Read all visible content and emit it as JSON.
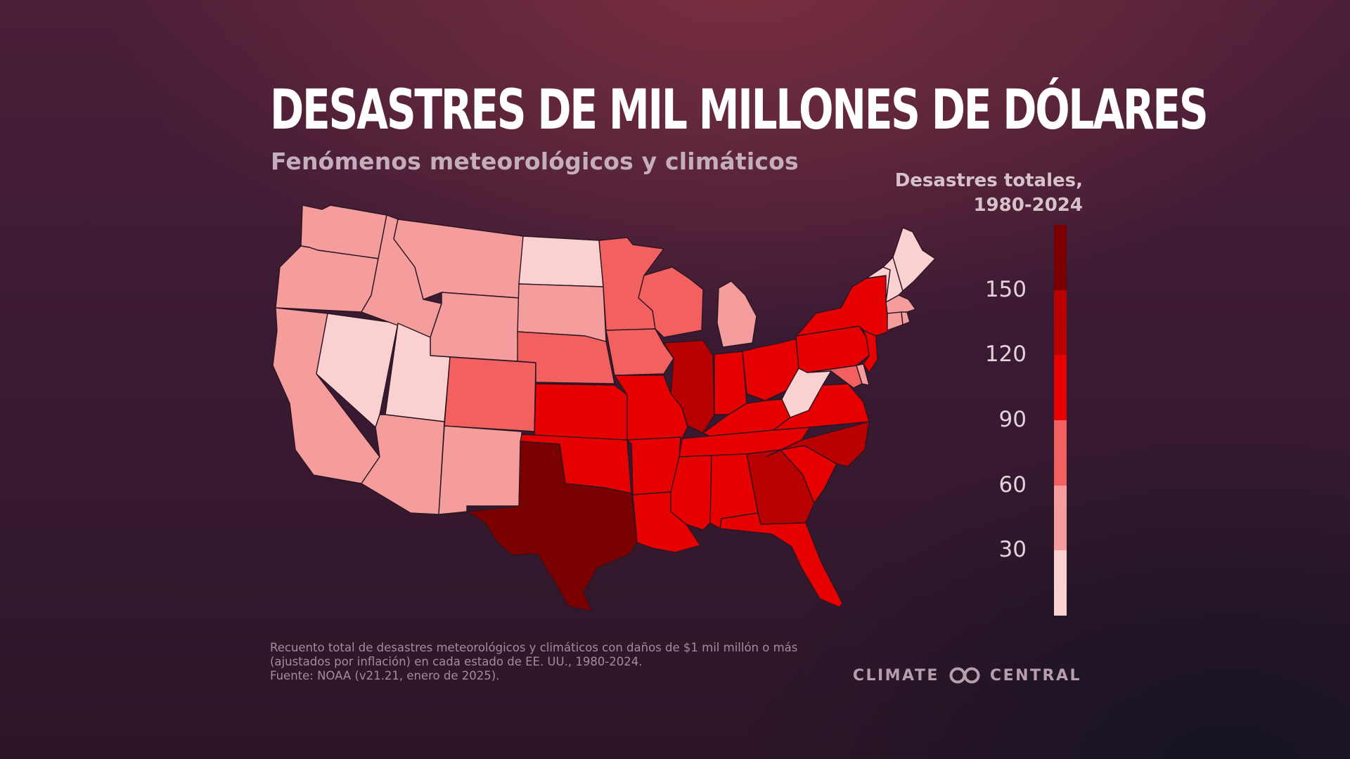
{
  "title": "DESASTRES DE MIL MILLONES DE DÓLARES",
  "subtitle": "Fenómenos meteorológicos y climáticos",
  "legend": {
    "title_line1": "Desastres totales,",
    "title_line2": "1980-2024",
    "ticks": [
      "150",
      "120",
      "90",
      "60",
      "30"
    ],
    "colors": [
      "#7a0000",
      "#b80000",
      "#e60000",
      "#f26060",
      "#f59c9c",
      "#fbd0d0"
    ]
  },
  "map": {
    "scale_bins": [
      {
        "range": "0-30",
        "color": "#fbd0d0"
      },
      {
        "range": "30-60",
        "color": "#f59c9c"
      },
      {
        "range": "60-90",
        "color": "#f26060"
      },
      {
        "range": "90-120",
        "color": "#e60000"
      },
      {
        "range": "120-150",
        "color": "#b80000"
      },
      {
        "range": "150+",
        "color": "#7a0000"
      }
    ],
    "states": [
      {
        "id": "WA",
        "bin": 1
      },
      {
        "id": "OR",
        "bin": 1
      },
      {
        "id": "CA",
        "bin": 1
      },
      {
        "id": "NV",
        "bin": 0
      },
      {
        "id": "ID",
        "bin": 1
      },
      {
        "id": "MT",
        "bin": 1
      },
      {
        "id": "WY",
        "bin": 1
      },
      {
        "id": "UT",
        "bin": 0
      },
      {
        "id": "AZ",
        "bin": 1
      },
      {
        "id": "CO",
        "bin": 2
      },
      {
        "id": "NM",
        "bin": 1
      },
      {
        "id": "ND",
        "bin": 0
      },
      {
        "id": "SD",
        "bin": 1
      },
      {
        "id": "NE",
        "bin": 2
      },
      {
        "id": "KS",
        "bin": 3
      },
      {
        "id": "OK",
        "bin": 3
      },
      {
        "id": "TX",
        "bin": 5
      },
      {
        "id": "MN",
        "bin": 2
      },
      {
        "id": "IA",
        "bin": 2
      },
      {
        "id": "MO",
        "bin": 3
      },
      {
        "id": "AR",
        "bin": 3
      },
      {
        "id": "LA",
        "bin": 3
      },
      {
        "id": "WI",
        "bin": 2
      },
      {
        "id": "IL",
        "bin": 4
      },
      {
        "id": "MI",
        "bin": 1
      },
      {
        "id": "IN",
        "bin": 3
      },
      {
        "id": "OH",
        "bin": 3
      },
      {
        "id": "KY",
        "bin": 3
      },
      {
        "id": "TN",
        "bin": 3
      },
      {
        "id": "MS",
        "bin": 3
      },
      {
        "id": "AL",
        "bin": 3
      },
      {
        "id": "GA",
        "bin": 4
      },
      {
        "id": "FL",
        "bin": 3
      },
      {
        "id": "SC",
        "bin": 3
      },
      {
        "id": "NC",
        "bin": 4
      },
      {
        "id": "VA",
        "bin": 3
      },
      {
        "id": "WV",
        "bin": 0
      },
      {
        "id": "PA",
        "bin": 3
      },
      {
        "id": "NY",
        "bin": 3
      },
      {
        "id": "VT",
        "bin": 0
      },
      {
        "id": "NH",
        "bin": 0
      },
      {
        "id": "ME",
        "bin": 0
      },
      {
        "id": "MA",
        "bin": 1
      },
      {
        "id": "CT",
        "bin": 1
      },
      {
        "id": "RI",
        "bin": 1
      },
      {
        "id": "NJ",
        "bin": 3
      },
      {
        "id": "DE",
        "bin": 1
      },
      {
        "id": "MD",
        "bin": 2
      }
    ]
  },
  "footnote": {
    "line1": "Recuento total de desastres meteorológicos y climáticos con daños de $1 mil millón o más",
    "line2": "(ajustados por inflación) en cada estado de EE. UU., 1980-2024.",
    "line3": "Fuente: NOAA (v21.21, enero de 2025)."
  },
  "brand": {
    "left": "CLIMATE",
    "right": "CENTRAL",
    "logo_icon": "infinity-loop-logo"
  }
}
